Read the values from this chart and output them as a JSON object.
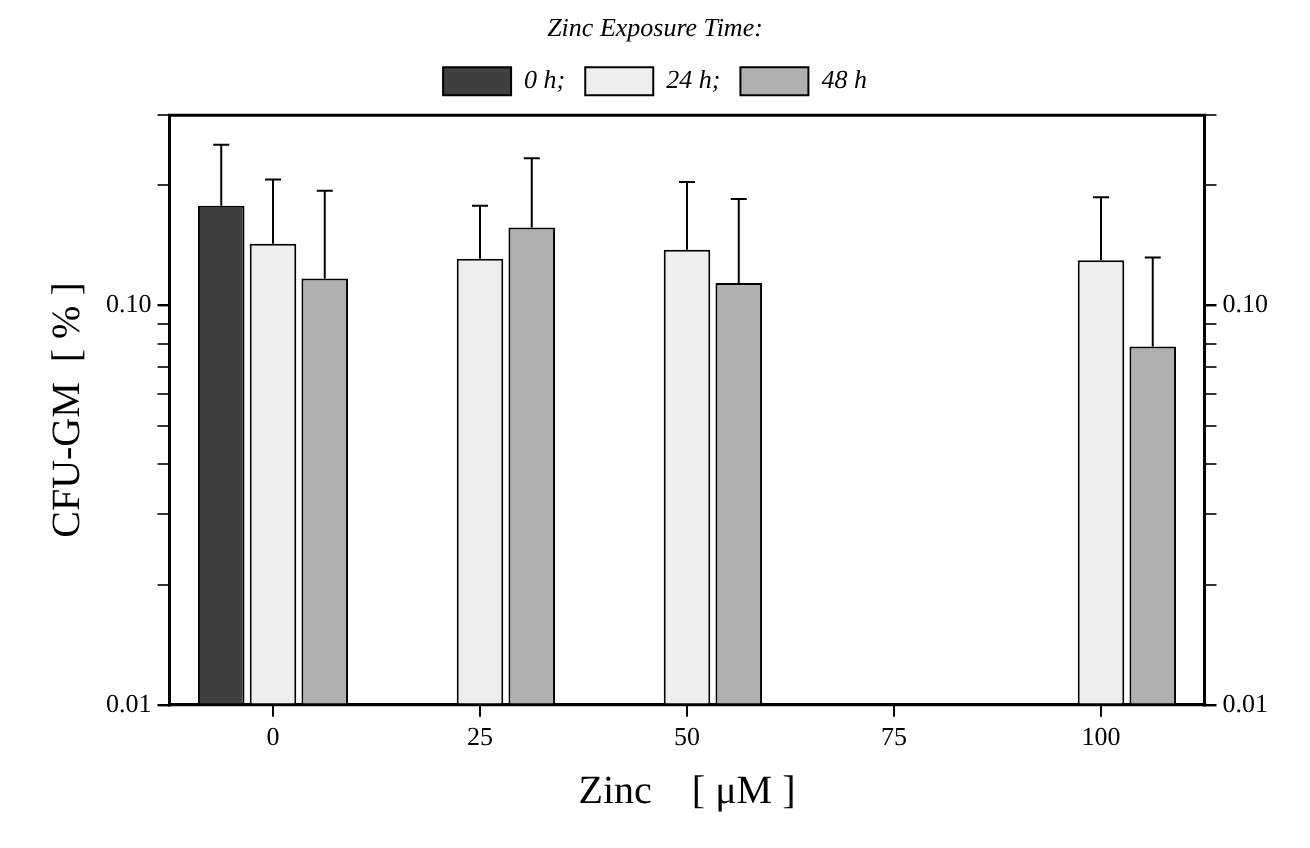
{
  "chart_data": {
    "type": "bar",
    "legend_title": "Zinc Exposure Time:",
    "xlabel": "Zinc    [ μM ]",
    "ylabel": "CFU-GM  [ % ]",
    "categories": [
      "0",
      "25",
      "50",
      "75",
      "100"
    ],
    "series": [
      {
        "name": "0 h;",
        "color": "#404040",
        "values": [
          0.178,
          null,
          null,
          null,
          null
        ],
        "errors": [
          [
            0.178,
            0.253
          ],
          null,
          null,
          null,
          null
        ]
      },
      {
        "name": "24 h;",
        "color": "#eeeeee",
        "values": [
          0.143,
          0.131,
          0.138,
          null,
          0.13
        ],
        "errors": [
          [
            0.143,
            0.207
          ],
          [
            0.131,
            0.178
          ],
          [
            0.138,
            0.204
          ],
          null,
          [
            0.13,
            0.187
          ]
        ]
      },
      {
        "name": "48 h",
        "color": "#b0b0b0",
        "values": [
          0.117,
          0.157,
          0.114,
          null,
          0.079
        ],
        "errors": [
          [
            0.117,
            0.194
          ],
          [
            0.157,
            0.234
          ],
          [
            0.114,
            0.185
          ],
          null,
          [
            0.079,
            0.132
          ]
        ]
      }
    ],
    "log": "y",
    "ylim": [
      0.01,
      0.3
    ],
    "yticks": [
      {
        "value": 0.01,
        "label": "0.01"
      },
      {
        "value": 0.02,
        "label": null
      },
      {
        "value": 0.03,
        "label": null
      },
      {
        "value": 0.04,
        "label": null
      },
      {
        "value": 0.05,
        "label": null
      },
      {
        "value": 0.06,
        "label": null
      },
      {
        "value": 0.07,
        "label": null
      },
      {
        "value": 0.08,
        "label": null
      },
      {
        "value": 0.09,
        "label": null
      },
      {
        "value": 0.1,
        "label": "0.10"
      },
      {
        "value": 0.2,
        "label": null
      },
      {
        "value": 0.3,
        "label": null
      }
    ],
    "grid": false,
    "legend": "top"
  }
}
